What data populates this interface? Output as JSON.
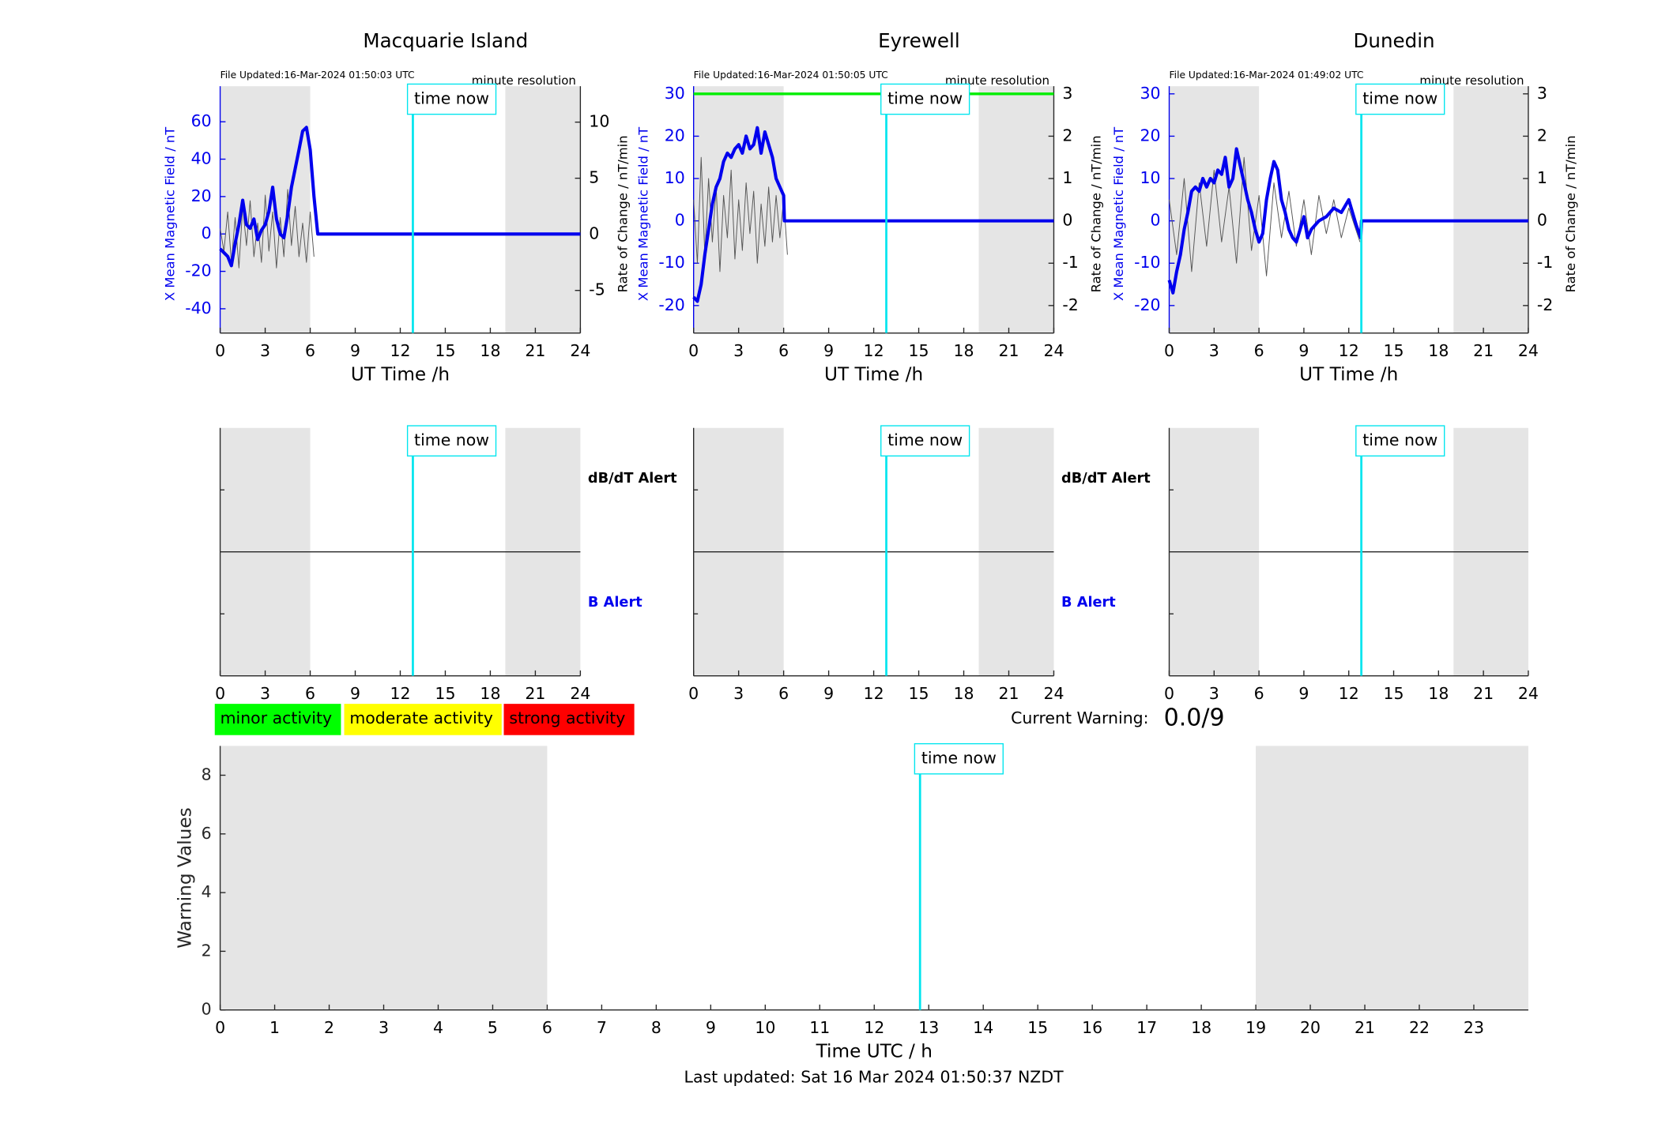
{
  "chart_data": [
    {
      "type": "line",
      "title": "Macquarie Island",
      "file_updated": "File Updated:16-Mar-2024 01:50:03 UTC",
      "resolution": "minute resolution",
      "xlabel": "UT Time /h",
      "ylabel": "X Mean Magnetic Field / nT",
      "y2label": "Rate of Change / nT/min",
      "xlim": [
        0,
        24
      ],
      "xticks": [
        0,
        3,
        6,
        9,
        12,
        15,
        18,
        21,
        24
      ],
      "ylim": [
        -53,
        79
      ],
      "yticks": [
        -40,
        -20,
        0,
        20,
        40,
        60
      ],
      "y2lim": [
        -8.8,
        13.2
      ],
      "y2ticks": [
        -5,
        0,
        5,
        10
      ],
      "shaded": [
        [
          0,
          6
        ],
        [
          19,
          24
        ]
      ],
      "time_now": 12.84,
      "time_now_label": "time now",
      "series": [
        {
          "name": "X Mean Magnetic Field",
          "color": "#0000ee",
          "axis": "y",
          "x": [
            0,
            0.25,
            0.5,
            0.75,
            1,
            1.25,
            1.5,
            1.75,
            2,
            2.25,
            2.5,
            2.75,
            3,
            3.25,
            3.5,
            3.75,
            4,
            4.25,
            4.5,
            4.75,
            5,
            5.25,
            5.5,
            5.75,
            6,
            6.25,
            6.5,
            24
          ],
          "values": [
            -8,
            -10,
            -12,
            -17,
            -5,
            5,
            18,
            5,
            3,
            8,
            -3,
            2,
            5,
            12,
            25,
            8,
            0,
            -2,
            10,
            25,
            35,
            45,
            55,
            57,
            45,
            20,
            0,
            0
          ]
        },
        {
          "name": "Rate of Change",
          "color": "#555555",
          "axis": "y2",
          "x": [
            0,
            0.25,
            0.5,
            0.75,
            1,
            1.25,
            1.5,
            1.75,
            2,
            2.25,
            2.5,
            2.75,
            3,
            3.25,
            3.5,
            3.75,
            4,
            4.25,
            4.5,
            4.75,
            5,
            5.25,
            5.5,
            5.75,
            6,
            6.25
          ],
          "values": [
            0.5,
            -1.5,
            2,
            -2.5,
            1.5,
            -3,
            2.5,
            -1,
            3,
            -2,
            1,
            -2.5,
            3.5,
            -1.5,
            2,
            -3,
            1.5,
            -2,
            4,
            -1,
            2.5,
            -2,
            1,
            -2.5,
            2,
            -2
          ]
        }
      ]
    },
    {
      "type": "line",
      "title": "Eyrewell",
      "file_updated": "File Updated:16-Mar-2024 01:50:05 UTC",
      "resolution": "minute resolution",
      "xlabel": "UT Time /h",
      "ylabel": "X Mean Magnetic Field / nT",
      "y2label": "Rate of Change / nT/min",
      "xlim": [
        0,
        24
      ],
      "xticks": [
        0,
        3,
        6,
        9,
        12,
        15,
        18,
        21,
        24
      ],
      "ylim": [
        -26.5,
        31.8
      ],
      "yticks": [
        -20,
        -10,
        0,
        10,
        20,
        30
      ],
      "y2lim": [
        -2.65,
        3.18
      ],
      "y2ticks": [
        -2,
        -1,
        0,
        1,
        2,
        3
      ],
      "threshold": 30,
      "threshold_color": "#00ee00",
      "shaded": [
        [
          0,
          6
        ],
        [
          19,
          24
        ]
      ],
      "time_now": 12.84,
      "time_now_label": "time now",
      "series": [
        {
          "name": "X Mean Magnetic Field",
          "color": "#0000ee",
          "axis": "y",
          "x": [
            0,
            0.25,
            0.5,
            0.75,
            1,
            1.25,
            1.5,
            1.75,
            2,
            2.25,
            2.5,
            2.75,
            3,
            3.25,
            3.5,
            3.75,
            4,
            4.25,
            4.5,
            4.75,
            5,
            5.25,
            5.5,
            5.75,
            6,
            6.05,
            24
          ],
          "values": [
            -18,
            -19,
            -15,
            -8,
            -2,
            4,
            8,
            10,
            14,
            16,
            15,
            17,
            18,
            16,
            20,
            17,
            18,
            22,
            16,
            21,
            18,
            15,
            10,
            8,
            6,
            0,
            0
          ]
        },
        {
          "name": "Rate of Change",
          "color": "#555555",
          "axis": "y2",
          "x": [
            0,
            0.25,
            0.5,
            0.75,
            1,
            1.25,
            1.5,
            1.75,
            2,
            2.25,
            2.5,
            2.75,
            3,
            3.25,
            3.5,
            3.75,
            4,
            4.25,
            4.5,
            4.75,
            5,
            5.25,
            5.5,
            5.75,
            6,
            6.25
          ],
          "values": [
            0.5,
            -1,
            1.5,
            -0.8,
            1,
            -0.5,
            0.8,
            -1.2,
            0.6,
            -0.4,
            1.2,
            -0.9,
            0.5,
            -0.7,
            0.9,
            -0.3,
            0.7,
            -1,
            0.4,
            -0.6,
            0.8,
            -0.5,
            0.6,
            -0.4,
            0.5,
            -0.8
          ]
        }
      ]
    },
    {
      "type": "line",
      "title": "Dunedin",
      "file_updated": "File Updated:16-Mar-2024 01:49:02 UTC",
      "resolution": "minute resolution",
      "xlabel": "UT Time /h",
      "ylabel": "X Mean Magnetic Field / nT",
      "y2label": "Rate of Change / nT/min",
      "xlim": [
        0,
        24
      ],
      "xticks": [
        0,
        3,
        6,
        9,
        12,
        15,
        18,
        21,
        24
      ],
      "ylim": [
        -26.5,
        31.8
      ],
      "yticks": [
        -20,
        -10,
        0,
        10,
        20,
        30
      ],
      "y2lim": [
        -2.65,
        3.18
      ],
      "y2ticks": [
        -2,
        -1,
        0,
        1,
        2,
        3
      ],
      "shaded": [
        [
          0,
          6
        ],
        [
          19,
          24
        ]
      ],
      "time_now": 12.84,
      "time_now_label": "time now",
      "series": [
        {
          "name": "X Mean Magnetic Field",
          "color": "#0000ee",
          "axis": "y",
          "x": [
            0,
            0.25,
            0.5,
            0.75,
            1,
            1.25,
            1.5,
            1.75,
            2,
            2.25,
            2.5,
            2.75,
            3,
            3.25,
            3.5,
            3.75,
            4,
            4.25,
            4.5,
            4.75,
            5,
            5.25,
            5.5,
            5.75,
            6,
            6.25,
            6.5,
            6.75,
            7,
            7.25,
            7.5,
            7.75,
            8,
            8.25,
            8.5,
            9,
            9.25,
            9.5,
            10,
            10.5,
            11,
            11.5,
            12,
            12.5,
            12.8,
            12.85,
            24
          ],
          "values": [
            -14,
            -17,
            -12,
            -8,
            -2,
            2,
            7,
            8,
            7,
            10,
            8,
            10,
            9,
            12,
            11,
            15,
            8,
            10,
            17,
            13,
            9,
            5,
            2,
            -2,
            -5,
            -3,
            5,
            10,
            14,
            12,
            5,
            2,
            -2,
            -4,
            -5,
            1,
            -4,
            -2,
            0,
            1,
            3,
            2,
            5,
            -1,
            -4,
            0,
            0
          ]
        },
        {
          "name": "Rate of Change",
          "color": "#555555",
          "axis": "y2",
          "x": [
            0,
            0.5,
            1,
            1.5,
            2,
            2.5,
            3,
            3.5,
            4,
            4.5,
            5,
            5.5,
            6,
            6.5,
            7,
            7.5,
            8,
            8.5,
            9,
            9.5,
            10,
            10.5,
            11,
            11.5,
            12,
            12.75
          ],
          "values": [
            0.5,
            -0.8,
            1,
            -1.2,
            0.9,
            -0.6,
            1.2,
            -0.5,
            0.8,
            -1,
            1.5,
            -0.7,
            0.6,
            -1.3,
            0.9,
            -0.4,
            0.7,
            -0.6,
            0.5,
            -0.8,
            0.6,
            -0.3,
            0.5,
            -0.4,
            0.3,
            -0.5
          ]
        }
      ]
    },
    {
      "type": "alert",
      "xlim": [
        0,
        24
      ],
      "xticks": [
        0,
        3,
        6,
        9,
        12,
        15,
        18,
        21,
        24
      ],
      "shaded": [
        [
          0,
          6
        ],
        [
          19,
          24
        ]
      ],
      "time_now": 12.84,
      "time_now_label": "time now",
      "upper_label": "dB/dT Alert",
      "lower_label": "B Alert"
    },
    {
      "type": "alert",
      "xlim": [
        0,
        24
      ],
      "xticks": [
        0,
        3,
        6,
        9,
        12,
        15,
        18,
        21,
        24
      ],
      "shaded": [
        [
          0,
          6
        ],
        [
          19,
          24
        ]
      ],
      "time_now": 12.84,
      "time_now_label": "time now",
      "upper_label": "dB/dT Alert",
      "lower_label": "B Alert"
    },
    {
      "type": "alert",
      "xlim": [
        0,
        24
      ],
      "xticks": [
        0,
        3,
        6,
        9,
        12,
        15,
        18,
        21,
        24
      ],
      "shaded": [
        [
          0,
          6
        ],
        [
          19,
          24
        ]
      ],
      "time_now": 12.84,
      "time_now_label": "time now"
    },
    {
      "type": "warning",
      "xlabel": "Time UTC / h",
      "ylabel": "Warning Values",
      "xlim": [
        0,
        24
      ],
      "xticks": [
        0,
        1,
        2,
        3,
        4,
        5,
        6,
        7,
        8,
        9,
        10,
        11,
        12,
        13,
        14,
        15,
        16,
        17,
        18,
        19,
        20,
        21,
        22,
        23
      ],
      "ylim": [
        0,
        9
      ],
      "yticks": [
        0,
        2,
        4,
        6,
        8
      ],
      "shaded": [
        [
          0,
          6
        ],
        [
          19,
          24
        ]
      ],
      "time_now": 12.84,
      "time_now_label": "time now"
    }
  ],
  "activity_legend": [
    {
      "label": "minor activity",
      "color": "#00ff00"
    },
    {
      "label": "moderate activity",
      "color": "#ffff00"
    },
    {
      "label": "strong activity",
      "color": "#ff0000"
    }
  ],
  "current_warning": {
    "label": "Current Warning:",
    "value": "0.0/9"
  },
  "footer": "Last updated: Sat 16 Mar 2024 01:50:37 NZDT"
}
